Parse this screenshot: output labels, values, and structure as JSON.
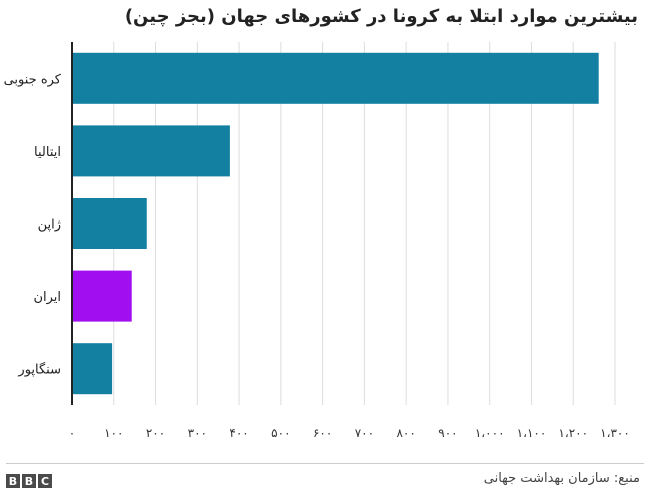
{
  "chart_data": {
    "type": "bar",
    "orientation": "horizontal",
    "title": "بیشترین موارد ابتلا به کرونا در کشورهای جهان (بجز چین)",
    "categories": [
      "کره جنوبی",
      "ایتالیا",
      "ژاپن",
      "ایران",
      "سنگاپور"
    ],
    "values": [
      1261,
      378,
      179,
      143,
      96
    ],
    "colors": [
      "#1380a1",
      "#1380a1",
      "#1380a1",
      "#a10ff0",
      "#1380a1"
    ],
    "xlim": [
      0,
      1300
    ],
    "xticks": [
      0,
      100,
      200,
      300,
      400,
      500,
      600,
      700,
      800,
      900,
      1000,
      1100,
      1200,
      1300
    ],
    "xtick_labels": [
      "۰",
      "۱۰۰",
      "۲۰۰",
      "۳۰۰",
      "۴۰۰",
      "۵۰۰",
      "۶۰۰",
      "۷۰۰",
      "۸۰۰",
      "۹۰۰",
      "۱،۰۰۰",
      "۱،۱۰۰",
      "۱،۲۰۰",
      "۱،۳۰۰"
    ],
    "grid": true
  },
  "footer": {
    "source": "منبع: سازمان بهداشت جهانی",
    "logo": [
      "B",
      "B",
      "C"
    ]
  }
}
